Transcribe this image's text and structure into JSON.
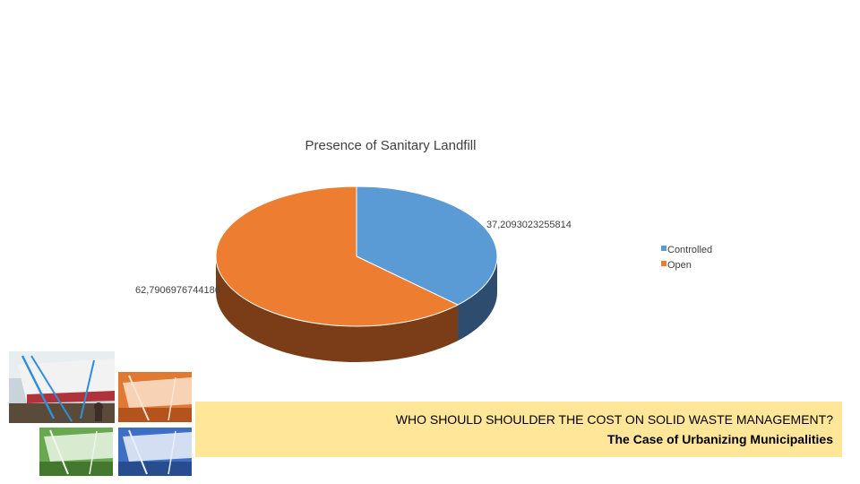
{
  "chart_data": {
    "type": "pie",
    "style": "3d",
    "title": "Presence of Sanitary Landfill",
    "categories": [
      "Controlled",
      "Open"
    ],
    "values": [
      37.2093023255814,
      62.7906976744186
    ],
    "data_labels": [
      "37,2093023255814",
      "62,7906976744186"
    ],
    "colors": [
      "#5b9bd5",
      "#ed7d31"
    ],
    "side_colors": [
      "#2e4d6e",
      "#7a3d17"
    ],
    "legend": {
      "position": "right",
      "entries": [
        "Controlled",
        "Open"
      ]
    }
  },
  "banner": {
    "title": "WHO SHOULD SHOULDER THE COST ON SOLID WASTE MANAGEMENT?",
    "subtitle": "The Case of Urbanizing Municipalities",
    "background": "#ffe699"
  },
  "thumbnails": [
    {
      "name": "photo-original",
      "tint": "#8a8f96"
    },
    {
      "name": "photo-orange",
      "tint": "#e07a32"
    },
    {
      "name": "photo-green",
      "tint": "#6aa84f"
    },
    {
      "name": "photo-blue",
      "tint": "#3d6fc4"
    }
  ]
}
